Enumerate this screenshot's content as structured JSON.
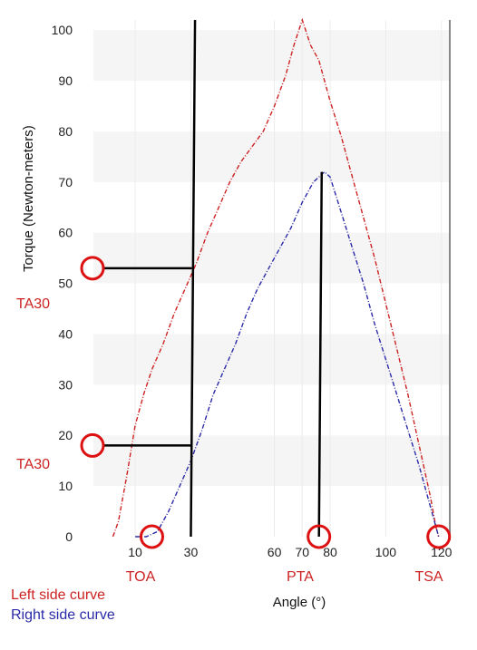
{
  "chart_data": {
    "type": "line",
    "xlabel": "Angle (°)",
    "ylabel": "Torque (Newton-meters)",
    "xlim": [
      -5,
      123
    ],
    "ylim": [
      0,
      102
    ],
    "x_ticks": [
      10,
      30,
      60,
      70,
      80,
      100,
      120
    ],
    "y_ticks": [
      0,
      10,
      20,
      30,
      40,
      50,
      60,
      70,
      80,
      90,
      100
    ],
    "grid": "horizontal bands",
    "series": [
      {
        "name": "Left side curve",
        "color": "#cc2222",
        "x": [
          2,
          4,
          7,
          10,
          13,
          16,
          20,
          24,
          28,
          32,
          36,
          40,
          44,
          48,
          52,
          56,
          60,
          64,
          67,
          70,
          73,
          76,
          80,
          84,
          88,
          92,
          96,
          100,
          104,
          108,
          112,
          116,
          118,
          119
        ],
        "y": [
          0,
          3,
          12,
          22,
          28,
          33,
          38,
          44,
          49,
          54,
          60,
          65,
          70,
          74,
          77,
          80,
          85,
          91,
          97,
          102,
          97,
          94,
          86,
          79,
          71,
          63,
          55,
          46,
          37,
          28,
          18,
          8,
          2,
          0
        ]
      },
      {
        "name": "Right side curve",
        "color": "#2a2aa8",
        "x": [
          10,
          14,
          18,
          22,
          26,
          30,
          34,
          38,
          42,
          46,
          50,
          54,
          58,
          62,
          66,
          70,
          74,
          78,
          80,
          84,
          88,
          92,
          96,
          100,
          104,
          108,
          112,
          116,
          119
        ],
        "y": [
          0,
          0,
          1,
          5,
          10,
          15,
          21,
          28,
          33,
          38,
          44,
          49,
          53,
          57,
          61,
          66,
          70,
          72,
          71,
          64,
          57,
          50,
          42,
          35,
          28,
          21,
          14,
          6,
          0
        ]
      }
    ],
    "annotations": [
      {
        "label": "TA30",
        "color": "#cc2222",
        "angle": 30,
        "torque": 53,
        "type": "left-curve marker"
      },
      {
        "label": "TA30",
        "color": "#cc2222",
        "angle": 30,
        "torque": 18,
        "type": "right-curve marker"
      },
      {
        "label": "TOA",
        "color": "#cc2222",
        "angle": 16,
        "torque": 0,
        "type": "onset"
      },
      {
        "label": "PTA",
        "color": "#cc2222",
        "angle": 76,
        "torque": 0,
        "type": "peak"
      },
      {
        "label": "TSA",
        "color": "#cc2222",
        "angle": 119,
        "torque": 0,
        "type": "stop"
      }
    ],
    "reference_lines": [
      {
        "from": [
          30,
          0
        ],
        "to": [
          31.5,
          102
        ]
      },
      {
        "from": [
          76,
          0
        ],
        "to": [
          77,
          72
        ]
      }
    ]
  }
}
